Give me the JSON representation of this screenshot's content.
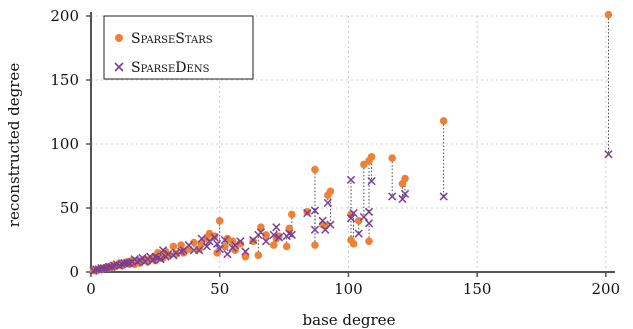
{
  "chart_data": {
    "type": "scatter",
    "xlabel": "base degree",
    "ylabel": "reconstructed degree",
    "xlim": [
      0,
      202
    ],
    "ylim": [
      0,
      200
    ],
    "xticks": [
      0,
      50,
      100,
      150,
      200
    ],
    "yticks": [
      0,
      50,
      100,
      150,
      200
    ],
    "grid": true,
    "legend_position": "top-left",
    "series": [
      {
        "name": "SparseStars",
        "color": "#ee8133",
        "marker": "circle"
      },
      {
        "name": "SparseDens",
        "color": "#7a3d98",
        "marker": "x"
      }
    ],
    "pairs": [
      [
        201,
        201,
        92
      ],
      [
        137,
        118,
        59
      ],
      [
        122,
        73,
        61
      ],
      [
        121,
        69,
        57
      ],
      [
        117,
        89,
        59
      ],
      [
        109,
        90,
        71
      ],
      [
        108,
        87,
        47
      ],
      [
        108,
        24,
        38
      ],
      [
        106,
        84,
        43
      ],
      [
        104,
        40,
        30
      ],
      [
        102,
        22,
        46
      ],
      [
        101,
        25,
        72
      ],
      [
        101,
        45,
        42
      ],
      [
        93,
        63,
        37
      ],
      [
        92,
        60,
        54
      ],
      [
        91,
        36,
        33
      ],
      [
        90,
        37,
        40
      ],
      [
        87,
        80,
        33
      ],
      [
        87,
        21,
        48
      ],
      [
        84,
        47,
        46
      ],
      [
        78,
        45,
        29
      ],
      [
        77,
        34,
        30
      ],
      [
        76,
        20,
        28
      ],
      [
        73,
        28,
        27
      ],
      [
        72,
        26,
        35
      ],
      [
        71,
        21,
        29
      ],
      [
        68,
        29,
        24
      ],
      [
        66,
        35,
        31
      ],
      [
        65,
        13,
        29
      ],
      [
        63,
        24,
        25
      ],
      [
        60,
        12,
        16
      ],
      [
        58,
        22,
        24
      ],
      [
        56,
        17,
        21
      ],
      [
        55,
        24,
        19
      ],
      [
        53,
        26,
        14
      ],
      [
        52,
        20,
        25
      ],
      [
        50,
        40,
        18
      ],
      [
        49,
        15,
        22
      ],
      [
        48,
        28,
        27
      ],
      [
        46,
        30,
        24
      ],
      [
        45,
        27,
        20
      ],
      [
        43,
        22,
        26
      ],
      [
        42,
        18,
        17
      ],
      [
        40,
        23,
        17
      ],
      [
        38,
        18,
        21
      ],
      [
        36,
        15,
        17
      ],
      [
        35,
        21,
        16
      ],
      [
        33,
        14,
        15
      ],
      [
        32,
        20,
        13
      ],
      [
        30,
        13,
        14
      ],
      [
        29,
        16,
        12
      ],
      [
        28,
        11,
        17
      ],
      [
        27,
        12,
        10
      ],
      [
        26,
        15,
        11
      ],
      [
        25,
        9,
        12
      ],
      [
        24,
        11,
        9
      ],
      [
        23,
        10,
        12
      ],
      [
        22,
        8,
        10
      ],
      [
        21,
        10,
        8
      ],
      [
        20,
        9,
        11
      ],
      [
        19,
        7,
        9
      ],
      [
        18,
        9,
        8
      ],
      [
        17,
        6,
        10
      ],
      [
        16,
        9,
        8
      ],
      [
        15,
        6,
        7
      ],
      [
        14,
        8,
        7
      ],
      [
        13,
        6,
        7
      ],
      [
        12,
        5,
        6
      ],
      [
        11,
        7,
        5
      ],
      [
        10,
        5,
        6
      ],
      [
        9,
        4,
        5
      ],
      [
        8,
        5,
        4
      ],
      [
        7,
        3,
        4
      ],
      [
        6,
        4,
        3
      ],
      [
        5,
        3,
        3
      ],
      [
        4,
        2,
        3
      ],
      [
        3,
        2,
        2
      ],
      [
        2,
        1,
        2
      ],
      [
        1,
        1,
        1
      ]
    ]
  }
}
